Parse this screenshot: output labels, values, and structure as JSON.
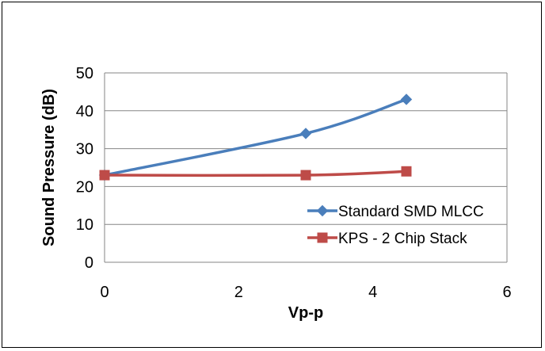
{
  "chart_data": {
    "type": "line",
    "title": "",
    "xlabel": "Vp-p",
    "ylabel": "Sound Pressure (dB)",
    "xlim": [
      0,
      6
    ],
    "ylim": [
      0,
      50
    ],
    "xticks": [
      0,
      2,
      4,
      6
    ],
    "yticks": [
      0,
      10,
      20,
      30,
      40,
      50
    ],
    "grid": "horizontal",
    "legend_position": "bottom-right",
    "series": [
      {
        "name": "Standard SMD MLCC",
        "color": "#4a7ebb",
        "marker": "diamond",
        "x": [
          0,
          3,
          4.5
        ],
        "y": [
          23,
          34,
          43
        ]
      },
      {
        "name": "KPS - 2 Chip Stack",
        "color": "#be4b48",
        "marker": "square",
        "x": [
          0,
          3,
          4.5
        ],
        "y": [
          23,
          23,
          24
        ]
      }
    ]
  }
}
